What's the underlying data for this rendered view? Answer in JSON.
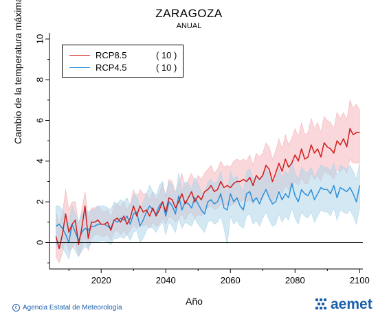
{
  "header": {
    "title": "ZARAGOZA",
    "subtitle": "ANUAL"
  },
  "footer": {
    "credit": "Agencia Estatal de Meteorología",
    "brand": "aemet",
    "brand_icon": "aemet-logo-icon",
    "brand_color": "#1a5faa"
  },
  "legend": {
    "items": [
      {
        "name": "RCP8.5",
        "count": "( 10 )",
        "color": "#d01c1c"
      },
      {
        "name": "RCP4.5",
        "count": "( 10 )",
        "color": "#2b8fd8"
      }
    ]
  },
  "chart_data": {
    "type": "line",
    "title": "ZARAGOZA",
    "subtitle": "ANUAL",
    "xlabel": "Año",
    "ylabel": "Cambio de la temperatura máxima (ºC)",
    "xlim": [
      2004,
      2101
    ],
    "ylim": [
      -1.3,
      10.3
    ],
    "xticks": [
      2020,
      2040,
      2060,
      2080,
      2100
    ],
    "yticks": [
      0,
      2,
      4,
      6,
      8,
      10
    ],
    "reference_line": 0,
    "grid": false,
    "legend_position": "top-left",
    "x": [
      2006,
      2007,
      2008,
      2009,
      2010,
      2011,
      2012,
      2013,
      2014,
      2015,
      2016,
      2017,
      2018,
      2019,
      2020,
      2021,
      2022,
      2023,
      2024,
      2025,
      2026,
      2027,
      2028,
      2029,
      2030,
      2031,
      2032,
      2033,
      2034,
      2035,
      2036,
      2037,
      2038,
      2039,
      2040,
      2041,
      2042,
      2043,
      2044,
      2045,
      2046,
      2047,
      2048,
      2049,
      2050,
      2051,
      2052,
      2053,
      2054,
      2055,
      2056,
      2057,
      2058,
      2059,
      2060,
      2061,
      2062,
      2063,
      2064,
      2065,
      2066,
      2067,
      2068,
      2069,
      2070,
      2071,
      2072,
      2073,
      2074,
      2075,
      2076,
      2077,
      2078,
      2079,
      2080,
      2081,
      2082,
      2083,
      2084,
      2085,
      2086,
      2087,
      2088,
      2089,
      2090,
      2091,
      2092,
      2093,
      2094,
      2095,
      2096,
      2097,
      2098,
      2099,
      2100
    ],
    "series": [
      {
        "name": "RCP8.5",
        "color": "#d01c1c",
        "band_color": "#f4b6bc",
        "values": [
          0.3,
          -0.3,
          0.4,
          1.4,
          0.5,
          0.9,
          1.1,
          -0.1,
          0.7,
          1.8,
          0.2,
          1.0,
          1.0,
          1.1,
          0.9,
          0.9,
          1.0,
          0.6,
          1.1,
          1.2,
          1.0,
          1.3,
          0.9,
          1.2,
          1.8,
          1.3,
          1.8,
          1.5,
          1.6,
          1.3,
          1.7,
          1.3,
          1.6,
          2.0,
          1.5,
          2.2,
          2.1,
          1.7,
          2.0,
          2.4,
          1.9,
          2.2,
          2.5,
          2.0,
          2.3,
          2.1,
          2.5,
          2.6,
          2.8,
          2.5,
          2.6,
          3.0,
          2.7,
          2.8,
          2.7,
          2.9,
          3.0,
          3.0,
          3.1,
          3.0,
          3.2,
          2.8,
          3.3,
          3.1,
          3.3,
          3.8,
          3.6,
          3.0,
          3.4,
          3.9,
          3.5,
          4.1,
          3.7,
          3.9,
          4.3,
          4.0,
          4.6,
          4.1,
          4.2,
          4.8,
          4.4,
          4.6,
          4.2,
          4.9,
          4.7,
          4.6,
          4.4,
          5.0,
          4.8,
          5.1,
          4.7,
          5.6,
          5.3,
          5.4,
          5.4
        ],
        "lower": [
          -0.7,
          -1.0,
          -0.5,
          0.2,
          -0.4,
          -0.3,
          0.1,
          -0.7,
          -0.3,
          0.3,
          -0.4,
          0.2,
          0.4,
          0.4,
          0.3,
          0.3,
          0.4,
          0.1,
          0.5,
          0.6,
          0.4,
          0.6,
          0.4,
          0.6,
          0.9,
          0.7,
          1.0,
          0.8,
          0.9,
          0.7,
          1.0,
          0.8,
          0.9,
          1.2,
          0.9,
          1.3,
          1.2,
          1.0,
          1.2,
          1.4,
          1.1,
          1.4,
          1.5,
          1.2,
          1.4,
          1.3,
          1.6,
          1.7,
          1.8,
          1.6,
          1.7,
          1.9,
          1.8,
          1.9,
          1.8,
          1.9,
          2.0,
          2.0,
          2.1,
          2.0,
          2.1,
          1.9,
          2.2,
          2.1,
          2.2,
          2.6,
          2.4,
          2.0,
          2.3,
          2.7,
          2.4,
          2.8,
          2.6,
          2.7,
          3.0,
          2.8,
          3.2,
          2.9,
          2.9,
          3.4,
          3.1,
          3.3,
          3.0,
          3.5,
          3.4,
          3.3,
          3.1,
          3.6,
          3.5,
          3.7,
          3.4,
          4.1,
          3.9,
          3.9,
          3.9
        ],
        "upper": [
          1.5,
          0.9,
          1.4,
          2.6,
          1.6,
          2.0,
          2.0,
          0.9,
          1.6,
          2.5,
          1.2,
          1.7,
          1.7,
          1.8,
          1.6,
          1.5,
          1.6,
          1.2,
          1.8,
          1.9,
          1.7,
          2.0,
          1.6,
          1.9,
          2.6,
          2.1,
          2.6,
          2.4,
          2.4,
          2.1,
          2.5,
          2.1,
          2.4,
          2.9,
          2.3,
          3.1,
          3.0,
          2.5,
          2.9,
          3.4,
          2.7,
          3.1,
          3.4,
          2.9,
          3.3,
          3.1,
          3.4,
          3.6,
          3.8,
          3.4,
          3.6,
          4.0,
          3.7,
          3.8,
          3.7,
          4.0,
          4.1,
          4.0,
          4.1,
          4.0,
          4.3,
          3.8,
          4.4,
          4.2,
          4.4,
          4.9,
          4.7,
          4.1,
          4.5,
          5.1,
          4.6,
          5.3,
          4.8,
          5.1,
          5.6,
          5.2,
          5.9,
          5.3,
          5.4,
          6.1,
          5.6,
          5.9,
          5.4,
          6.2,
          6.0,
          5.9,
          5.6,
          6.4,
          6.1,
          6.4,
          6.0,
          7.0,
          6.6,
          6.8,
          6.5
        ]
      },
      {
        "name": "RCP4.5",
        "color": "#2b8fd8",
        "band_color": "#aed6ea",
        "values": [
          0.8,
          0.9,
          0.7,
          0.4,
          0.0,
          0.9,
          0.5,
          0.1,
          0.5,
          0.7,
          0.6,
          0.8,
          0.8,
          0.9,
          0.9,
          0.9,
          0.8,
          0.7,
          1.1,
          1.0,
          1.2,
          1.1,
          1.3,
          0.9,
          1.4,
          1.5,
          0.8,
          1.1,
          1.5,
          1.8,
          1.6,
          1.4,
          1.8,
          2.0,
          1.3,
          2.0,
          1.8,
          1.4,
          2.3,
          1.6,
          2.0,
          1.9,
          1.7,
          2.2,
          1.9,
          1.6,
          1.4,
          2.0,
          2.1,
          1.9,
          2.0,
          2.4,
          1.7,
          1.6,
          2.4,
          2.0,
          2.2,
          1.8,
          1.6,
          2.4,
          2.5,
          2.0,
          2.2,
          1.9,
          2.3,
          2.6,
          2.2,
          1.9,
          2.0,
          2.5,
          2.1,
          2.4,
          2.2,
          2.9,
          2.3,
          2.0,
          2.6,
          2.4,
          2.3,
          2.6,
          2.1,
          2.4,
          2.7,
          2.6,
          2.6,
          2.4,
          2.8,
          2.2,
          2.7,
          2.6,
          2.5,
          2.7,
          2.4,
          2.0,
          2.8
        ],
        "lower": [
          -0.2,
          -0.1,
          -0.3,
          -0.5,
          -0.8,
          -0.1,
          -0.4,
          -0.7,
          -0.4,
          -0.2,
          -0.3,
          0.0,
          0.0,
          0.0,
          0.1,
          0.1,
          0.0,
          -0.1,
          0.2,
          0.2,
          0.3,
          0.2,
          0.4,
          0.1,
          0.5,
          0.6,
          0.0,
          0.2,
          0.6,
          0.8,
          0.7,
          0.5,
          0.8,
          1.0,
          0.4,
          1.0,
          0.8,
          0.5,
          1.2,
          0.7,
          1.0,
          0.9,
          0.8,
          1.2,
          0.9,
          0.7,
          0.5,
          1.0,
          1.1,
          0.9,
          1.0,
          1.3,
          0.7,
          -0.1,
          1.3,
          0.9,
          1.1,
          0.8,
          0.7,
          1.3,
          1.4,
          0.9,
          1.1,
          0.8,
          1.2,
          1.5,
          1.1,
          0.8,
          0.9,
          1.4,
          1.0,
          1.3,
          1.1,
          1.7,
          1.2,
          0.9,
          1.5,
          1.3,
          1.2,
          1.5,
          1.0,
          1.3,
          1.6,
          1.5,
          1.5,
          1.3,
          1.7,
          1.1,
          1.6,
          1.5,
          1.4,
          1.6,
          1.3,
          0.9,
          1.7
        ],
        "upper": [
          1.8,
          1.8,
          1.6,
          1.3,
          0.9,
          1.8,
          1.4,
          1.0,
          1.4,
          1.6,
          1.5,
          1.6,
          1.6,
          1.8,
          1.8,
          1.8,
          1.7,
          1.6,
          2.0,
          1.9,
          2.1,
          2.0,
          2.2,
          1.8,
          2.3,
          2.4,
          1.7,
          2.0,
          2.4,
          2.8,
          2.5,
          2.3,
          2.8,
          3.0,
          2.2,
          3.0,
          2.8,
          2.3,
          3.4,
          2.5,
          3.0,
          2.9,
          2.6,
          3.2,
          2.9,
          2.5,
          2.3,
          3.0,
          3.1,
          2.9,
          3.0,
          3.5,
          2.7,
          2.5,
          3.5,
          3.1,
          3.3,
          2.8,
          2.5,
          3.5,
          3.6,
          3.1,
          3.3,
          2.9,
          3.4,
          3.7,
          3.3,
          2.9,
          3.1,
          3.6,
          3.2,
          3.5,
          3.3,
          4.1,
          3.4,
          3.1,
          3.7,
          3.5,
          3.4,
          3.7,
          3.2,
          3.5,
          3.8,
          3.7,
          3.7,
          3.5,
          3.9,
          3.3,
          3.8,
          3.7,
          3.6,
          3.8,
          3.5,
          3.1,
          3.9
        ]
      }
    ]
  }
}
